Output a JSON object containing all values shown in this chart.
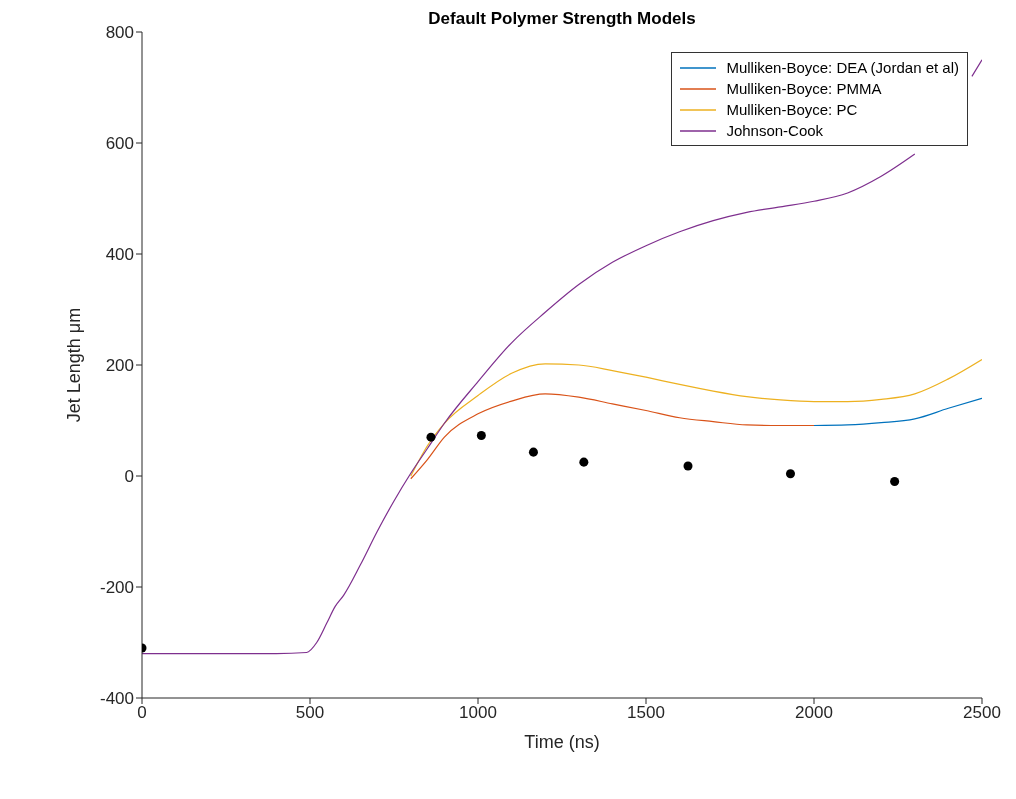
{
  "chart_data": {
    "type": "line",
    "title": "Default Polymer Strength Models",
    "xlabel": "Time (ns)",
    "ylabel": "Jet Length μm",
    "xlim": [
      0,
      2500
    ],
    "xticks": [
      0,
      500,
      1000,
      1500,
      2000,
      2500
    ],
    "ylim": [
      -400,
      800
    ],
    "yticks": [
      -400,
      -200,
      0,
      200,
      400,
      600,
      800
    ],
    "grid": false,
    "legend": "top right",
    "marker": "none",
    "line_style": "solid",
    "series": [
      {
        "name": "Mulliken-Boyce: DEA (Jordan et al)",
        "color": "#0072bd",
        "x": [
          2000,
          2100,
          2200,
          2300,
          2400,
          2500
        ],
        "values": [
          91,
          92,
          96,
          103,
          122,
          140
        ]
      },
      {
        "name": "Mulliken-Boyce: PMMA",
        "color": "#d95319",
        "x": [
          800,
          850,
          900,
          1000,
          1100,
          1200,
          1300,
          1400,
          1500,
          1600,
          1700,
          1800,
          1900,
          2000
        ],
        "values": [
          -5,
          30,
          70,
          112,
          135,
          148,
          142,
          130,
          118,
          105,
          98,
          92,
          91,
          91
        ]
      },
      {
        "name": "Mulliken-Boyce: PC",
        "color": "#edb120",
        "x": [
          800,
          850,
          900,
          1000,
          1100,
          1200,
          1300,
          1400,
          1500,
          1600,
          1700,
          1800,
          1900,
          2000,
          2100,
          2200,
          2300,
          2400,
          2500
        ],
        "values": [
          0,
          55,
          95,
          145,
          185,
          202,
          200,
          190,
          178,
          165,
          153,
          143,
          137,
          134,
          134,
          138,
          148,
          175,
          210
        ]
      },
      {
        "name": "Johnson-Cook",
        "color": "#7e2f8e",
        "x": [
          0,
          100,
          200,
          300,
          400,
          490,
          520,
          550,
          575,
          600,
          650,
          700,
          750,
          800,
          850,
          900,
          1000,
          1100,
          1200,
          1300,
          1400,
          1500,
          1600,
          1700,
          1800,
          1900,
          2000,
          2100,
          2200,
          2300,
          2400,
          2470,
          2500
        ],
        "values": [
          -320,
          -320,
          -320,
          -320,
          -320,
          -318,
          -300,
          -265,
          -235,
          -215,
          -160,
          -100,
          -45,
          5,
          50,
          95,
          170,
          240,
          295,
          345,
          385,
          415,
          440,
          460,
          475,
          485,
          495,
          510,
          540,
          580,
          null,
          720,
          750
        ]
      },
      {
        "type": "scatter",
        "color": "#000000",
        "marker": "circle",
        "x": [
          0,
          860,
          1010,
          1165,
          1315,
          1625,
          1930,
          2240
        ],
        "values": [
          -310,
          70,
          73,
          43,
          25,
          18,
          4,
          -10
        ]
      }
    ]
  }
}
